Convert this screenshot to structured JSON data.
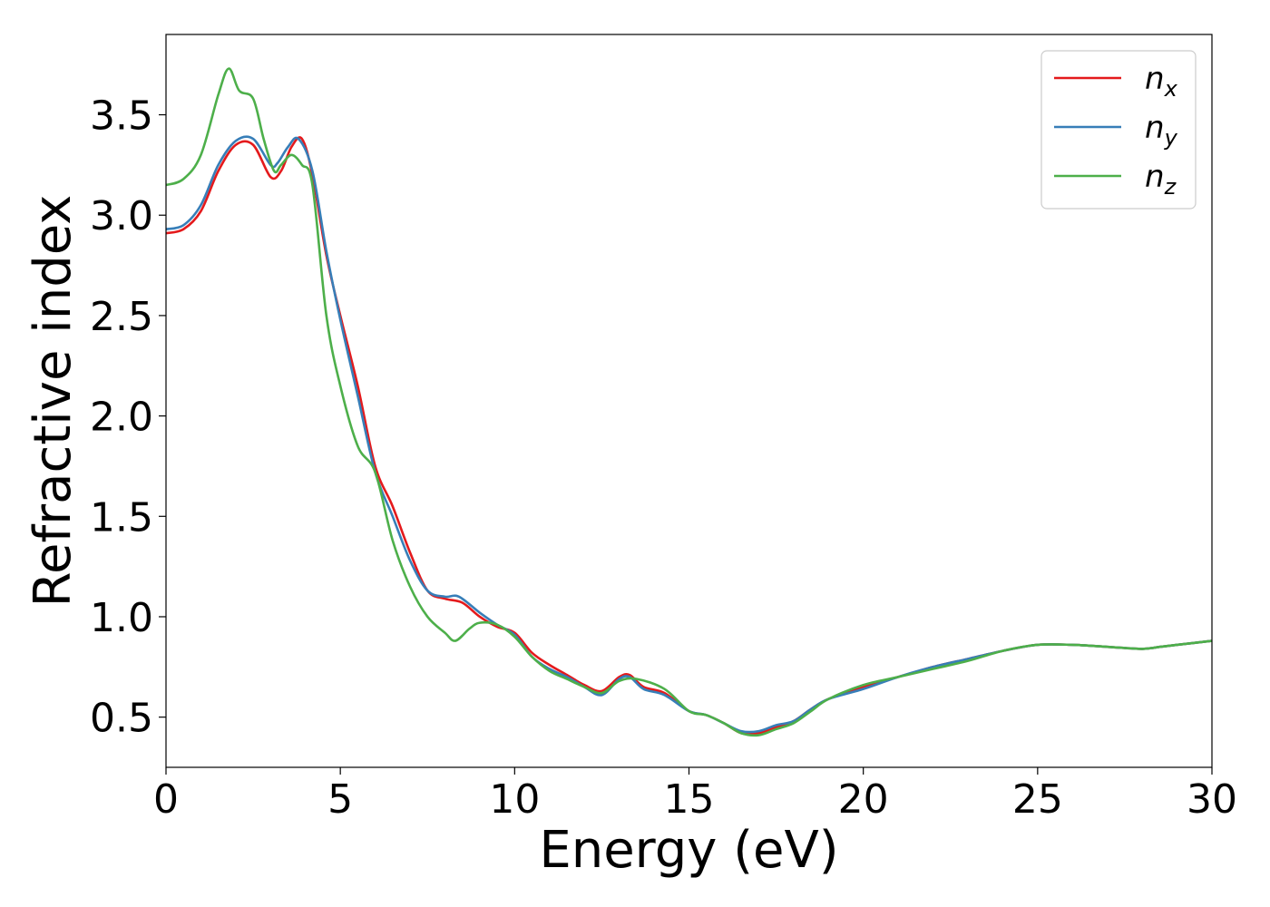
{
  "chart_data": {
    "type": "line",
    "title": "",
    "xlabel": "Energy (eV)",
    "ylabel": "Refractive index",
    "xlim": [
      0,
      30
    ],
    "ylim": [
      0.25,
      3.9
    ],
    "xticks": [
      "0",
      "5",
      "10",
      "15",
      "20",
      "25",
      "30"
    ],
    "yticks": [
      "0.5",
      "1.0",
      "1.5",
      "2.0",
      "2.5",
      "3.0",
      "3.5"
    ],
    "grid": false,
    "legend_position": "top-right",
    "series": [
      {
        "name": "n",
        "subscript": "x",
        "color": "#e41a1c",
        "points": [
          [
            0,
            2.91
          ],
          [
            0.5,
            2.93
          ],
          [
            1.0,
            3.02
          ],
          [
            1.5,
            3.22
          ],
          [
            2.0,
            3.35
          ],
          [
            2.5,
            3.35
          ],
          [
            3.0,
            3.19
          ],
          [
            3.3,
            3.22
          ],
          [
            3.6,
            3.34
          ],
          [
            3.9,
            3.38
          ],
          [
            4.2,
            3.2
          ],
          [
            4.6,
            2.8
          ],
          [
            5.0,
            2.5
          ],
          [
            5.5,
            2.15
          ],
          [
            6.0,
            1.75
          ],
          [
            6.5,
            1.55
          ],
          [
            7.0,
            1.32
          ],
          [
            7.5,
            1.13
          ],
          [
            8.0,
            1.09
          ],
          [
            8.5,
            1.07
          ],
          [
            9.0,
            1.0
          ],
          [
            9.5,
            0.95
          ],
          [
            10.0,
            0.92
          ],
          [
            10.5,
            0.82
          ],
          [
            11.0,
            0.76
          ],
          [
            11.5,
            0.71
          ],
          [
            12.0,
            0.66
          ],
          [
            12.5,
            0.63
          ],
          [
            13.0,
            0.7
          ],
          [
            13.3,
            0.71
          ],
          [
            13.7,
            0.65
          ],
          [
            14.3,
            0.62
          ],
          [
            15.0,
            0.53
          ],
          [
            15.5,
            0.51
          ],
          [
            16.0,
            0.47
          ],
          [
            16.5,
            0.42
          ],
          [
            17.0,
            0.42
          ],
          [
            17.5,
            0.45
          ],
          [
            18.0,
            0.48
          ],
          [
            18.5,
            0.54
          ],
          [
            19.0,
            0.59
          ],
          [
            20.0,
            0.65
          ],
          [
            21.0,
            0.7
          ],
          [
            22.0,
            0.75
          ],
          [
            23.0,
            0.79
          ],
          [
            24.0,
            0.83
          ],
          [
            25.0,
            0.86
          ],
          [
            26.0,
            0.86
          ],
          [
            27.0,
            0.85
          ],
          [
            28.0,
            0.84
          ],
          [
            28.5,
            0.85
          ],
          [
            29.0,
            0.86
          ],
          [
            30.0,
            0.88
          ]
        ]
      },
      {
        "name": "n",
        "subscript": "y",
        "color": "#377eb8",
        "points": [
          [
            0,
            2.93
          ],
          [
            0.5,
            2.95
          ],
          [
            1.0,
            3.05
          ],
          [
            1.5,
            3.25
          ],
          [
            2.0,
            3.37
          ],
          [
            2.5,
            3.38
          ],
          [
            3.0,
            3.25
          ],
          [
            3.2,
            3.26
          ],
          [
            3.5,
            3.34
          ],
          [
            3.8,
            3.38
          ],
          [
            4.2,
            3.22
          ],
          [
            4.6,
            2.82
          ],
          [
            5.0,
            2.48
          ],
          [
            5.5,
            2.1
          ],
          [
            6.0,
            1.72
          ],
          [
            6.5,
            1.5
          ],
          [
            7.0,
            1.28
          ],
          [
            7.5,
            1.13
          ],
          [
            8.0,
            1.1
          ],
          [
            8.4,
            1.1
          ],
          [
            9.0,
            1.02
          ],
          [
            9.5,
            0.96
          ],
          [
            10.0,
            0.91
          ],
          [
            10.5,
            0.8
          ],
          [
            11.0,
            0.74
          ],
          [
            11.5,
            0.7
          ],
          [
            12.0,
            0.65
          ],
          [
            12.5,
            0.61
          ],
          [
            13.0,
            0.69
          ],
          [
            13.3,
            0.7
          ],
          [
            13.7,
            0.64
          ],
          [
            14.3,
            0.61
          ],
          [
            15.0,
            0.53
          ],
          [
            15.5,
            0.51
          ],
          [
            16.0,
            0.47
          ],
          [
            16.5,
            0.43
          ],
          [
            17.0,
            0.43
          ],
          [
            17.5,
            0.46
          ],
          [
            18.0,
            0.48
          ],
          [
            18.5,
            0.54
          ],
          [
            19.0,
            0.59
          ],
          [
            20.0,
            0.64
          ],
          [
            21.0,
            0.7
          ],
          [
            22.0,
            0.75
          ],
          [
            23.0,
            0.79
          ],
          [
            24.0,
            0.83
          ],
          [
            25.0,
            0.86
          ],
          [
            26.0,
            0.86
          ],
          [
            27.0,
            0.85
          ],
          [
            28.0,
            0.84
          ],
          [
            28.5,
            0.85
          ],
          [
            29.0,
            0.86
          ],
          [
            30.0,
            0.88
          ]
        ]
      },
      {
        "name": "n",
        "subscript": "z",
        "color": "#4daf4a",
        "points": [
          [
            0,
            3.15
          ],
          [
            0.5,
            3.18
          ],
          [
            1.0,
            3.3
          ],
          [
            1.5,
            3.6
          ],
          [
            1.8,
            3.73
          ],
          [
            2.1,
            3.62
          ],
          [
            2.5,
            3.58
          ],
          [
            2.8,
            3.38
          ],
          [
            3.1,
            3.22
          ],
          [
            3.3,
            3.25
          ],
          [
            3.6,
            3.3
          ],
          [
            3.9,
            3.25
          ],
          [
            4.2,
            3.15
          ],
          [
            4.6,
            2.5
          ],
          [
            5.0,
            2.15
          ],
          [
            5.5,
            1.85
          ],
          [
            6.0,
            1.72
          ],
          [
            6.5,
            1.38
          ],
          [
            7.0,
            1.15
          ],
          [
            7.5,
            1.0
          ],
          [
            8.0,
            0.92
          ],
          [
            8.3,
            0.88
          ],
          [
            8.7,
            0.94
          ],
          [
            9.0,
            0.97
          ],
          [
            9.5,
            0.96
          ],
          [
            10.0,
            0.9
          ],
          [
            10.5,
            0.8
          ],
          [
            11.0,
            0.73
          ],
          [
            11.5,
            0.69
          ],
          [
            12.0,
            0.65
          ],
          [
            12.5,
            0.62
          ],
          [
            13.0,
            0.68
          ],
          [
            13.5,
            0.69
          ],
          [
            14.3,
            0.64
          ],
          [
            15.0,
            0.53
          ],
          [
            15.5,
            0.51
          ],
          [
            16.0,
            0.47
          ],
          [
            16.5,
            0.42
          ],
          [
            17.0,
            0.41
          ],
          [
            17.5,
            0.44
          ],
          [
            18.0,
            0.47
          ],
          [
            18.5,
            0.53
          ],
          [
            19.0,
            0.59
          ],
          [
            20.0,
            0.66
          ],
          [
            21.0,
            0.7
          ],
          [
            22.0,
            0.74
          ],
          [
            23.0,
            0.78
          ],
          [
            24.0,
            0.83
          ],
          [
            25.0,
            0.86
          ],
          [
            26.0,
            0.86
          ],
          [
            27.0,
            0.85
          ],
          [
            28.0,
            0.84
          ],
          [
            28.5,
            0.85
          ],
          [
            29.0,
            0.86
          ],
          [
            30.0,
            0.88
          ]
        ]
      }
    ]
  }
}
